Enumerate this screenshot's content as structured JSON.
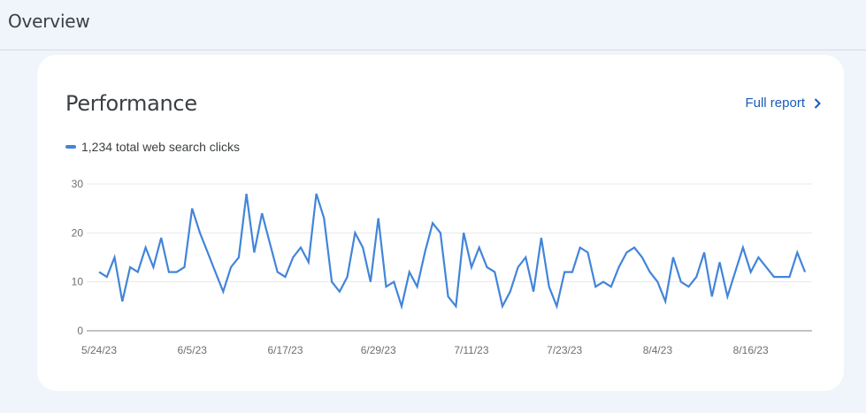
{
  "header": {
    "title": "Overview"
  },
  "card": {
    "title": "Performance",
    "full_report_label": "Full report",
    "legend_label": "1,234 total web search clicks",
    "line_color": "#4285d9",
    "link_color": "#1a5bb8"
  },
  "chart_data": {
    "type": "line",
    "title": "Performance",
    "xlabel": "",
    "ylabel": "",
    "ylim": [
      0,
      30
    ],
    "yticks": [
      0,
      10,
      20,
      30
    ],
    "grid": true,
    "legend": [
      "1,234 total web search clicks"
    ],
    "legend_position": "top-left",
    "x_tick_labels": [
      "5/24/23",
      "6/5/23",
      "6/17/23",
      "6/29/23",
      "7/11/23",
      "7/23/23",
      "8/4/23",
      "8/16/23"
    ],
    "x_start": "5/24/23",
    "x_step_days": 1,
    "series": [
      {
        "name": "Clicks",
        "values": [
          12,
          11,
          15,
          6,
          13,
          12,
          17,
          13,
          19,
          12,
          12,
          13,
          25,
          20,
          16,
          12,
          8,
          13,
          15,
          28,
          16,
          24,
          18,
          12,
          11,
          15,
          17,
          14,
          28,
          23,
          10,
          8,
          11,
          20,
          17,
          10,
          23,
          9,
          10,
          5,
          12,
          9,
          16,
          22,
          20,
          7,
          5,
          20,
          13,
          17,
          13,
          12,
          5,
          8,
          13,
          15,
          8,
          19,
          9,
          5,
          12,
          12,
          17,
          16,
          9,
          10,
          9,
          13,
          16,
          17,
          15,
          12,
          10,
          6,
          15,
          10,
          9,
          11,
          16,
          7,
          14,
          7,
          12,
          17,
          12,
          15,
          13,
          11,
          11,
          11,
          16,
          12
        ]
      }
    ]
  }
}
